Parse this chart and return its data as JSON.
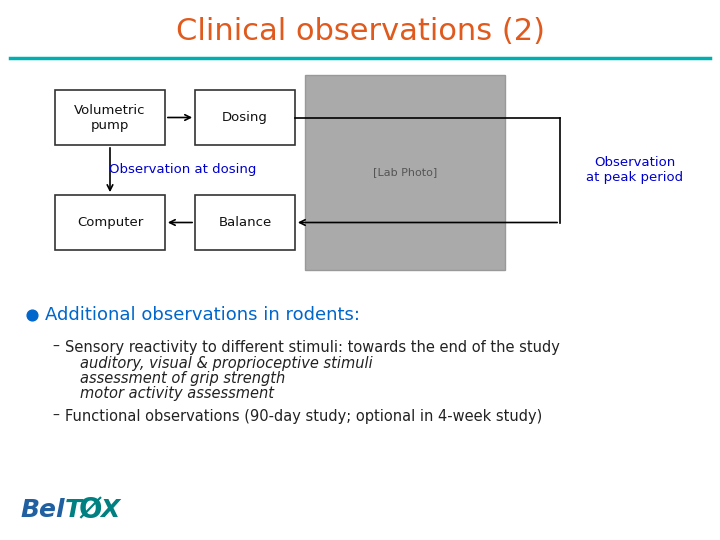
{
  "title": "Clinical observations (2)",
  "title_color": "#E05A1E",
  "title_fontsize": 22,
  "bg_color": "#FFFFFF",
  "teal_line_color": "#00B0B0",
  "box_labels": [
    "Volumetric\npump",
    "Dosing",
    "Computer",
    "Balance"
  ],
  "obs_dosing_label": "Observation at dosing",
  "obs_peak_label": "Observation\nat peak period",
  "obs_label_color": "#0000CC",
  "bullet_color": "#0066CC",
  "bullet_title": "Additional observations in rodents:",
  "bullet_title_color": "#0066CC",
  "bullet_title_fontsize": 13,
  "sub1_normal": "Sensory reactivity to different stimuli: towards the end of the study",
  "sub1_italic": "auditory, visual & proprioceptive stimuli\nassessment of grip strength\nmotor activity assessment",
  "sub2_normal": "Functional observations (90-day study; optional in 4-week study)",
  "text_color": "#222222",
  "text_fontsize": 10.5,
  "logo_text_bel": "Bel",
  "logo_text_tox": "X",
  "logo_text_o": "T",
  "logo_color_bel": "#2060A0",
  "logo_color_tox": "#008080"
}
